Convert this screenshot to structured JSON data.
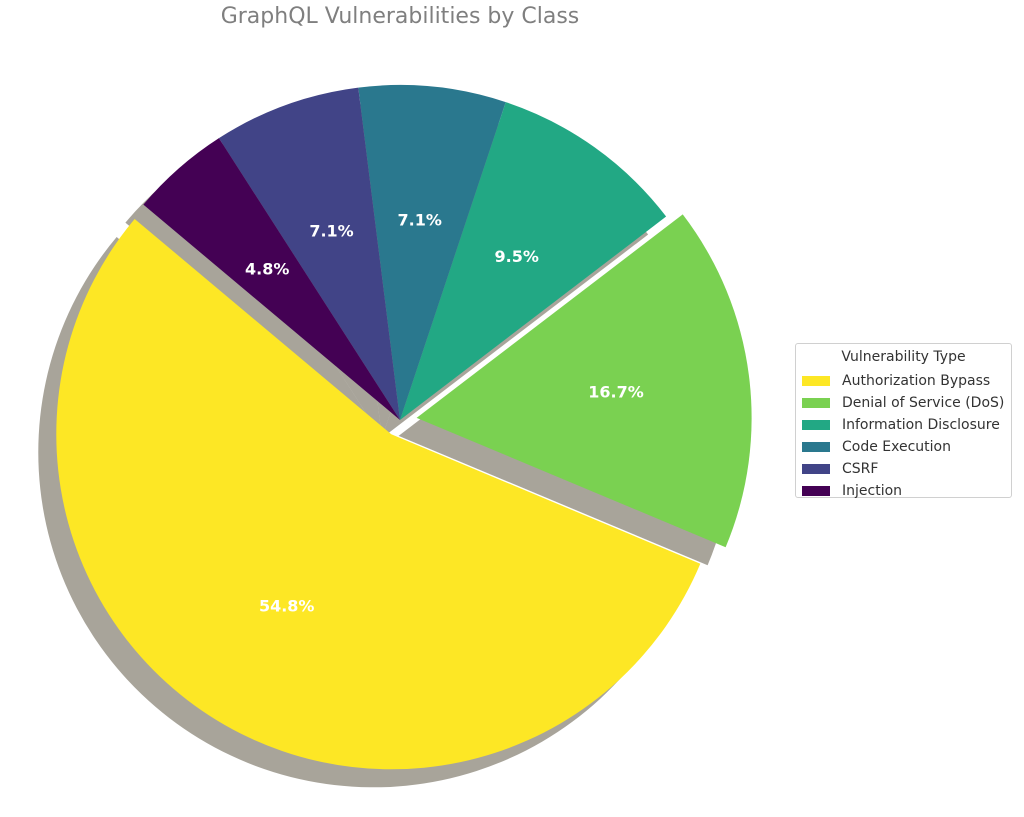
{
  "chart_data": {
    "type": "pie",
    "title": "GraphQL Vulnerabilities by Class",
    "legend_title": "Vulnerability Type",
    "legend_position": "center-right",
    "shadow": true,
    "start_angle_deg": 140,
    "direction": "counterclockwise",
    "slices": [
      {
        "label": "Authorization Bypass",
        "value": 54.8,
        "pct_label": "54.8%",
        "color": "#fde725",
        "explode": 0.05
      },
      {
        "label": "Denial of Service (DoS)",
        "value": 16.7,
        "pct_label": "16.7%",
        "color": "#7ad151",
        "explode": 0.05
      },
      {
        "label": "Information Disclosure",
        "value": 9.5,
        "pct_label": "9.5%",
        "color": "#22a884",
        "explode": 0
      },
      {
        "label": "Code Execution",
        "value": 7.1,
        "pct_label": "7.1%",
        "color": "#2a788e",
        "explode": 0
      },
      {
        "label": "CSRF",
        "value": 7.1,
        "pct_label": "7.1%",
        "color": "#414487",
        "explode": 0
      },
      {
        "label": "Injection",
        "value": 4.8,
        "pct_label": "4.8%",
        "color": "#440154",
        "explode": 0
      }
    ]
  }
}
